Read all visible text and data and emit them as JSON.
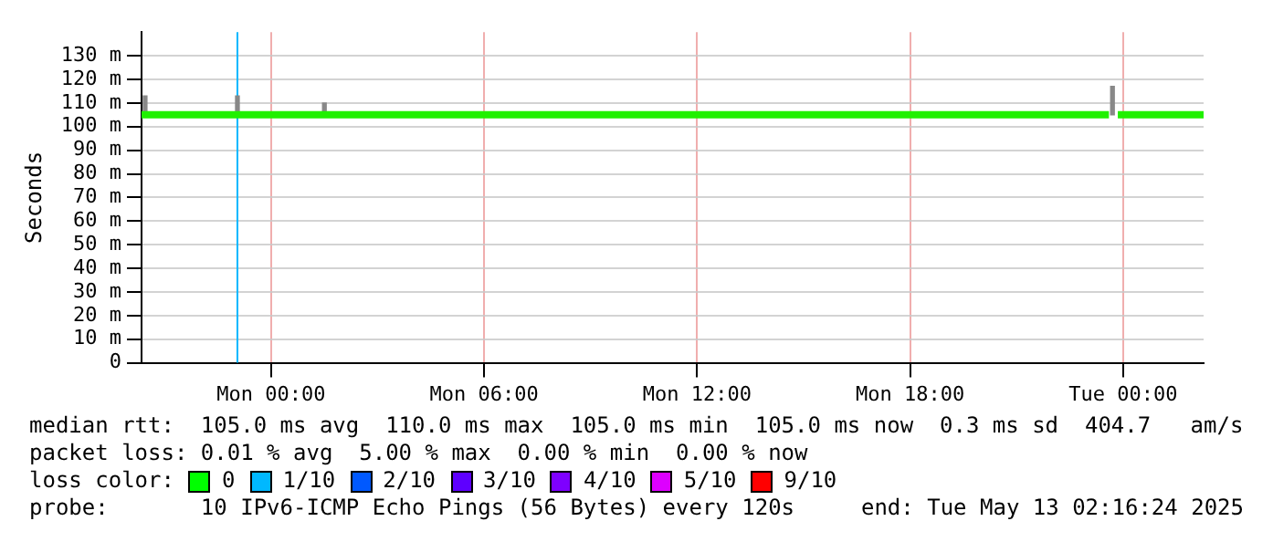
{
  "chart_data": {
    "type": "line",
    "ylabel": "Seconds",
    "xlim": [
      "2025-05-11T20:21",
      "2025-05-13T02:16"
    ],
    "xticks": [
      {
        "value": "2025-05-12T00:00",
        "label": "Mon 00:00"
      },
      {
        "value": "2025-05-12T06:00",
        "label": "Mon 06:00"
      },
      {
        "value": "2025-05-12T12:00",
        "label": "Mon 12:00"
      },
      {
        "value": "2025-05-12T18:00",
        "label": "Mon 18:00"
      },
      {
        "value": "2025-05-13T00:00",
        "label": "Tue 00:00"
      }
    ],
    "ylim": [
      0,
      140
    ],
    "yticks": [
      {
        "value": 0,
        "label": "0"
      },
      {
        "value": 10,
        "label": "10 m"
      },
      {
        "value": 20,
        "label": "20 m"
      },
      {
        "value": 30,
        "label": "30 m"
      },
      {
        "value": 40,
        "label": "40 m"
      },
      {
        "value": 50,
        "label": "50 m"
      },
      {
        "value": 60,
        "label": "60 m"
      },
      {
        "value": 70,
        "label": "70 m"
      },
      {
        "value": 80,
        "label": "80 m"
      },
      {
        "value": 90,
        "label": "90 m"
      },
      {
        "value": 100,
        "label": "100 m"
      },
      {
        "value": 110,
        "label": "110 m"
      },
      {
        "value": 120,
        "label": "120 m"
      },
      {
        "value": 130,
        "label": "130 m"
      }
    ],
    "grid": true,
    "legend": false,
    "marker": "none",
    "line_style": "solid",
    "series": [
      {
        "type": "bar",
        "color": "#888888",
        "x": [
          "2025-05-11T20:27",
          "2025-05-11T23:03",
          "2025-05-12T01:30",
          "2025-05-12T23:42"
        ],
        "base": [
          105,
          105,
          105,
          105
        ],
        "values": [
          8,
          8,
          5,
          12
        ]
      },
      {
        "color": "#20f000",
        "x": [
          "2025-05-11T20:21",
          "2025-05-12T23:36",
          "2025-05-12T23:42",
          "2025-05-12T23:51",
          "2025-05-13T02:16"
        ],
        "values": [
          105,
          105,
          null,
          105,
          105
        ]
      }
    ],
    "ref_lines": [
      {
        "axis": "x",
        "value": "2025-05-11T23:03",
        "color": "#00b8ff"
      }
    ],
    "annotations": [
      "median rtt:  105.0 ms avg  110.0 ms max  105.0 ms min  105.0 ms now  0.3 ms sd  404.7   am/s",
      "packet loss: 0.01 % avg  5.00 % max  0.00 % min  0.00 % now",
      "loss color:",
      "0",
      "1/10",
      "2/10",
      "3/10",
      "4/10",
      "5/10",
      "9/10",
      "probe:       10 IPv6-ICMP Echo Pings (56 Bytes) every 120s",
      "end: Tue May 13 02:16:24 2025"
    ]
  }
}
